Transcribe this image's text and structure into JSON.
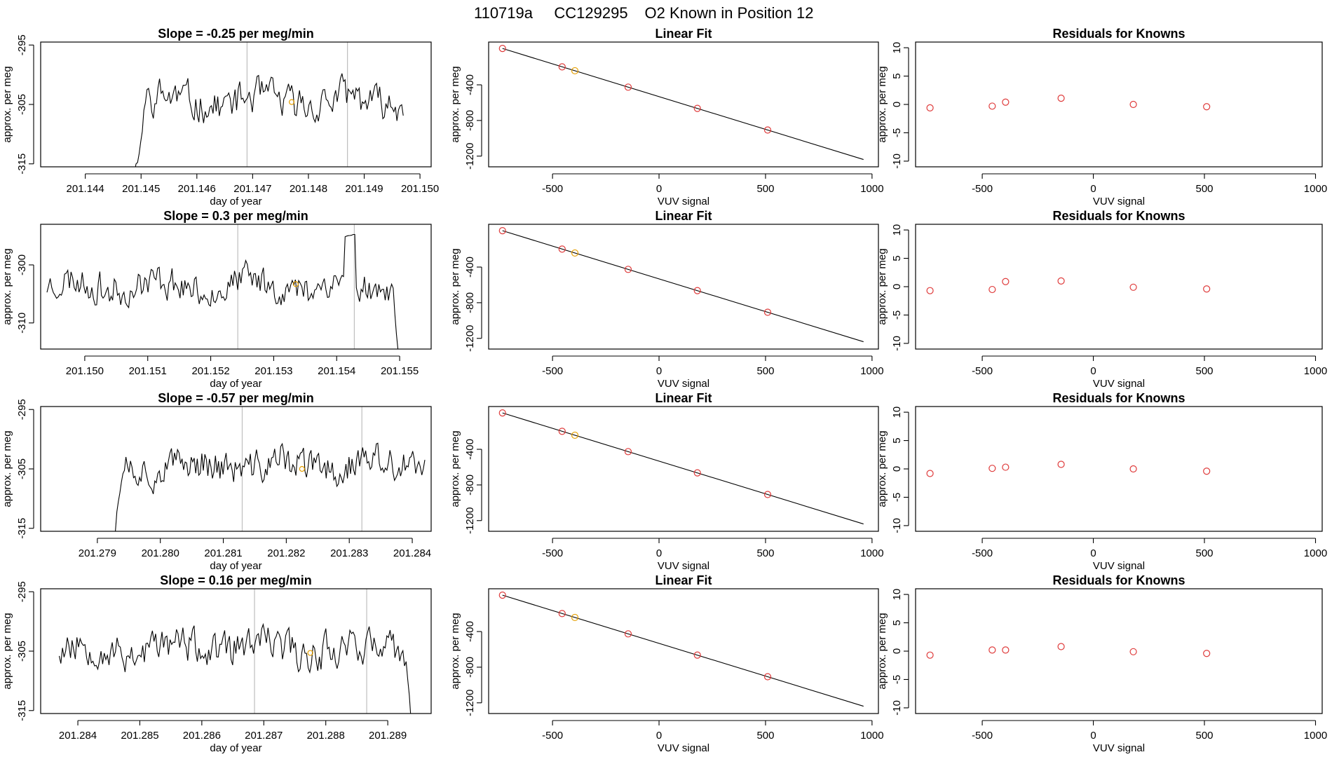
{
  "figure": {
    "title_parts": [
      "110719a",
      "CC129295",
      "O2 Known in Position  12"
    ]
  },
  "colors": {
    "line": "#000000",
    "frame": "#000000",
    "guide": "#bebebe",
    "marker_red": "#df3b3b",
    "marker_orange": "#e69f00"
  },
  "chart_data": [
    {
      "type": "line",
      "row": 1,
      "panel": "time-series",
      "title": "Slope =  -0.25  per meg/min",
      "xlabel": "day of year",
      "ylabel": "approx. per meg",
      "xlim": [
        201.1432,
        201.1502
      ],
      "ylim": [
        -315.5,
        -294.5
      ],
      "xticks": [
        201.144,
        201.145,
        201.146,
        201.147,
        201.148,
        201.149,
        201.15
      ],
      "xtick_labels": [
        "201.144",
        "201.145",
        "201.146",
        "201.147",
        "201.148",
        "201.149",
        "201.150"
      ],
      "yticks": [
        -295,
        -305,
        -315
      ],
      "ytick_labels": [
        "-295",
        "-305",
        "-315"
      ],
      "vlines": [
        201.1469,
        201.1487
      ],
      "seed": 11,
      "base": -304.5,
      "noise": 2.6,
      "series_start": 201.1435,
      "series_end": 201.1497,
      "ramp_start": 201.1448,
      "ramp_end": 201.1451,
      "ramp_low": -322,
      "tail_drop": null,
      "marker": {
        "x": 201.1477,
        "y": -304.6
      }
    },
    {
      "type": "scatter",
      "row": 1,
      "panel": "linear-fit",
      "title": "Linear Fit",
      "xlabel": "VUV signal",
      "ylabel": "approx. per meg",
      "xlim": [
        -800,
        1030
      ],
      "ylim": [
        -1320,
        80
      ],
      "xticks": [
        -500,
        0,
        500,
        1000
      ],
      "xtick_labels": [
        "-500",
        "0",
        "500",
        "1000"
      ],
      "yticks": [
        -400,
        -800,
        -1200
      ],
      "ytick_labels": [
        "-400",
        "-800",
        "-1200"
      ],
      "fit_line": {
        "x": [
          -735,
          960
        ],
        "y": [
          8,
          -1238
        ]
      },
      "points": [
        {
          "x": -735,
          "y": 8,
          "c": "red"
        },
        {
          "x": -455,
          "y": -198,
          "c": "red"
        },
        {
          "x": -395,
          "y": -242,
          "c": "orange"
        },
        {
          "x": -145,
          "y": -426,
          "c": "red"
        },
        {
          "x": 180,
          "y": -664,
          "c": "red"
        },
        {
          "x": 510,
          "y": -907,
          "c": "red"
        }
      ]
    },
    {
      "type": "scatter",
      "row": 1,
      "panel": "residuals",
      "title": "Residuals for Knowns",
      "xlabel": "VUV signal",
      "ylabel": "approx. per meg",
      "xlim": [
        -800,
        1030
      ],
      "ylim": [
        -11,
        11
      ],
      "xticks": [
        -500,
        0,
        500,
        1000
      ],
      "xtick_labels": [
        "-500",
        "0",
        "500",
        "1000"
      ],
      "yticks": [
        10,
        5,
        0,
        -5,
        -10
      ],
      "ytick_labels": [
        "10",
        "5",
        "0",
        "-5",
        "-10"
      ],
      "points": [
        {
          "x": -735,
          "y": -0.6,
          "c": "red"
        },
        {
          "x": -455,
          "y": -0.3,
          "c": "red"
        },
        {
          "x": -395,
          "y": 0.4,
          "c": "red"
        },
        {
          "x": -145,
          "y": 1.1,
          "c": "red"
        },
        {
          "x": 180,
          "y": 0.0,
          "c": "red"
        },
        {
          "x": 510,
          "y": -0.4,
          "c": "red"
        }
      ]
    },
    {
      "type": "line",
      "row": 2,
      "panel": "time-series",
      "title": "Slope =  0.3  per meg/min",
      "xlabel": "day of year",
      "ylabel": "approx. per meg",
      "xlim": [
        201.1493,
        201.1555
      ],
      "ylim": [
        -314.5,
        -293
      ],
      "xticks": [
        201.15,
        201.151,
        201.152,
        201.153,
        201.154,
        201.155
      ],
      "xtick_labels": [
        "201.150",
        "201.151",
        "201.152",
        "201.153",
        "201.154",
        "201.155"
      ],
      "yticks": [
        -300,
        -310
      ],
      "ytick_labels": [
        "-300",
        "-310"
      ],
      "vlines": [
        201.15243,
        201.15428
      ],
      "seed": 23,
      "base": -303.5,
      "noise": 2.4,
      "series_start": 201.1494,
      "series_end": 201.155,
      "ramp_start": null,
      "ramp_end": null,
      "ramp_low": null,
      "tail_drop": -318,
      "spike": {
        "x": 201.1542,
        "y": -295
      },
      "marker": {
        "x": 201.15335,
        "y": -303.3
      }
    },
    {
      "type": "scatter",
      "row": 2,
      "panel": "linear-fit",
      "title": "Linear Fit",
      "xlabel": "VUV signal",
      "ylabel": "approx. per meg",
      "xlim": [
        -800,
        1030
      ],
      "ylim": [
        -1320,
        80
      ],
      "xticks": [
        -500,
        0,
        500,
        1000
      ],
      "xtick_labels": [
        "-500",
        "0",
        "500",
        "1000"
      ],
      "yticks": [
        -400,
        -800,
        -1200
      ],
      "ytick_labels": [
        "-400",
        "-800",
        "-1200"
      ],
      "fit_line": {
        "x": [
          -735,
          960
        ],
        "y": [
          8,
          -1238
        ]
      },
      "points": [
        {
          "x": -735,
          "y": 8,
          "c": "red"
        },
        {
          "x": -455,
          "y": -198,
          "c": "red"
        },
        {
          "x": -395,
          "y": -242,
          "c": "orange"
        },
        {
          "x": -145,
          "y": -426,
          "c": "red"
        },
        {
          "x": 180,
          "y": -664,
          "c": "red"
        },
        {
          "x": 510,
          "y": -907,
          "c": "red"
        }
      ]
    },
    {
      "type": "scatter",
      "row": 2,
      "panel": "residuals",
      "title": "Residuals for Knowns",
      "xlabel": "VUV signal",
      "ylabel": "approx. per meg",
      "xlim": [
        -800,
        1030
      ],
      "ylim": [
        -11,
        11
      ],
      "xticks": [
        -500,
        0,
        500,
        1000
      ],
      "xtick_labels": [
        "-500",
        "0",
        "500",
        "1000"
      ],
      "yticks": [
        10,
        5,
        0,
        -5,
        -10
      ],
      "ytick_labels": [
        "10",
        "5",
        "0",
        "-5",
        "-10"
      ],
      "points": [
        {
          "x": -735,
          "y": -0.7,
          "c": "red"
        },
        {
          "x": -455,
          "y": -0.5,
          "c": "red"
        },
        {
          "x": -395,
          "y": 0.9,
          "c": "red"
        },
        {
          "x": -145,
          "y": 1.0,
          "c": "red"
        },
        {
          "x": 180,
          "y": -0.1,
          "c": "red"
        },
        {
          "x": 510,
          "y": -0.4,
          "c": "red"
        }
      ]
    },
    {
      "type": "line",
      "row": 3,
      "panel": "time-series",
      "title": "Slope =  -0.57  per meg/min",
      "xlabel": "day of year",
      "ylabel": "approx. per meg",
      "xlim": [
        201.2781,
        201.2843
      ],
      "ylim": [
        -315.5,
        -294.5
      ],
      "xticks": [
        201.279,
        201.28,
        201.281,
        201.282,
        201.283,
        201.284
      ],
      "xtick_labels": [
        "201.279",
        "201.280",
        "201.281",
        "201.282",
        "201.283",
        "201.284"
      ],
      "yticks": [
        -295,
        -305,
        -315
      ],
      "ytick_labels": [
        "-295",
        "-305",
        "-315"
      ],
      "vlines": [
        201.2813,
        201.2832
      ],
      "seed": 37,
      "base": -304.5,
      "noise": 2.5,
      "series_start": 201.2789,
      "series_end": 201.2842,
      "ramp_start": 201.2792,
      "ramp_end": 201.2794,
      "ramp_low": -322,
      "tail_drop": null,
      "marker": {
        "x": 201.28225,
        "y": -305.0
      }
    },
    {
      "type": "scatter",
      "row": 3,
      "panel": "linear-fit",
      "title": "Linear Fit",
      "xlabel": "VUV signal",
      "ylabel": "approx. per meg",
      "xlim": [
        -800,
        1030
      ],
      "ylim": [
        -1320,
        80
      ],
      "xticks": [
        -500,
        0,
        500,
        1000
      ],
      "xtick_labels": [
        "-500",
        "0",
        "500",
        "1000"
      ],
      "yticks": [
        -400,
        -800,
        -1200
      ],
      "ytick_labels": [
        "-400",
        "-800",
        "-1200"
      ],
      "fit_line": {
        "x": [
          -735,
          960
        ],
        "y": [
          8,
          -1238
        ]
      },
      "points": [
        {
          "x": -735,
          "y": 8,
          "c": "red"
        },
        {
          "x": -455,
          "y": -198,
          "c": "red"
        },
        {
          "x": -395,
          "y": -242,
          "c": "orange"
        },
        {
          "x": -145,
          "y": -426,
          "c": "red"
        },
        {
          "x": 180,
          "y": -664,
          "c": "red"
        },
        {
          "x": 510,
          "y": -907,
          "c": "red"
        }
      ]
    },
    {
      "type": "scatter",
      "row": 3,
      "panel": "residuals",
      "title": "Residuals for Knowns",
      "xlabel": "VUV signal",
      "ylabel": "approx. per meg",
      "xlim": [
        -800,
        1030
      ],
      "ylim": [
        -11,
        11
      ],
      "xticks": [
        -500,
        0,
        500,
        1000
      ],
      "xtick_labels": [
        "-500",
        "0",
        "500",
        "1000"
      ],
      "yticks": [
        10,
        5,
        0,
        -5,
        -10
      ],
      "ytick_labels": [
        "10",
        "5",
        "0",
        "-5",
        "-10"
      ],
      "points": [
        {
          "x": -735,
          "y": -0.8,
          "c": "red"
        },
        {
          "x": -455,
          "y": 0.1,
          "c": "red"
        },
        {
          "x": -395,
          "y": 0.3,
          "c": "red"
        },
        {
          "x": -145,
          "y": 0.8,
          "c": "red"
        },
        {
          "x": 180,
          "y": 0.0,
          "c": "red"
        },
        {
          "x": 510,
          "y": -0.4,
          "c": "red"
        }
      ]
    },
    {
      "type": "line",
      "row": 4,
      "panel": "time-series",
      "title": "Slope =  0.16  per meg/min",
      "xlabel": "day of year",
      "ylabel": "approx. per meg",
      "xlim": [
        201.2834,
        201.2897
      ],
      "ylim": [
        -315.5,
        -294.5
      ],
      "xticks": [
        201.284,
        201.285,
        201.286,
        201.287,
        201.288,
        201.289
      ],
      "xtick_labels": [
        "201.284",
        "201.285",
        "201.286",
        "201.287",
        "201.288",
        "201.289"
      ],
      "yticks": [
        -295,
        -305,
        -315
      ],
      "ytick_labels": [
        "-295",
        "-305",
        "-315"
      ],
      "vlines": [
        201.28685,
        201.28866
      ],
      "seed": 53,
      "base": -304.5,
      "noise": 2.7,
      "series_start": 201.2837,
      "series_end": 201.2894,
      "ramp_start": null,
      "ramp_end": null,
      "ramp_low": null,
      "tail_drop": -320,
      "marker": {
        "x": 201.28775,
        "y": -305.3
      }
    },
    {
      "type": "scatter",
      "row": 4,
      "panel": "linear-fit",
      "title": "Linear Fit",
      "xlabel": "VUV signal",
      "ylabel": "approx. per meg",
      "xlim": [
        -800,
        1030
      ],
      "ylim": [
        -1320,
        80
      ],
      "xticks": [
        -500,
        0,
        500,
        1000
      ],
      "xtick_labels": [
        "-500",
        "0",
        "500",
        "1000"
      ],
      "yticks": [
        -400,
        -800,
        -1200
      ],
      "ytick_labels": [
        "-400",
        "-800",
        "-1200"
      ],
      "fit_line": {
        "x": [
          -735,
          960
        ],
        "y": [
          8,
          -1238
        ]
      },
      "points": [
        {
          "x": -735,
          "y": 8,
          "c": "red"
        },
        {
          "x": -455,
          "y": -198,
          "c": "red"
        },
        {
          "x": -395,
          "y": -242,
          "c": "orange"
        },
        {
          "x": -145,
          "y": -426,
          "c": "red"
        },
        {
          "x": 180,
          "y": -664,
          "c": "red"
        },
        {
          "x": 510,
          "y": -907,
          "c": "red"
        }
      ]
    },
    {
      "type": "scatter",
      "row": 4,
      "panel": "residuals",
      "title": "Residuals for Knowns",
      "xlabel": "VUV signal",
      "ylabel": "approx. per meg",
      "xlim": [
        -800,
        1030
      ],
      "ylim": [
        -11,
        11
      ],
      "xticks": [
        -500,
        0,
        500,
        1000
      ],
      "xtick_labels": [
        "-500",
        "0",
        "500",
        "1000"
      ],
      "yticks": [
        10,
        5,
        0,
        -5,
        -10
      ],
      "ytick_labels": [
        "10",
        "5",
        "0",
        "-5",
        "-10"
      ],
      "points": [
        {
          "x": -735,
          "y": -0.7,
          "c": "red"
        },
        {
          "x": -455,
          "y": 0.2,
          "c": "red"
        },
        {
          "x": -395,
          "y": 0.2,
          "c": "red"
        },
        {
          "x": -145,
          "y": 0.8,
          "c": "red"
        },
        {
          "x": 180,
          "y": -0.1,
          "c": "red"
        },
        {
          "x": 510,
          "y": -0.4,
          "c": "red"
        }
      ]
    }
  ]
}
